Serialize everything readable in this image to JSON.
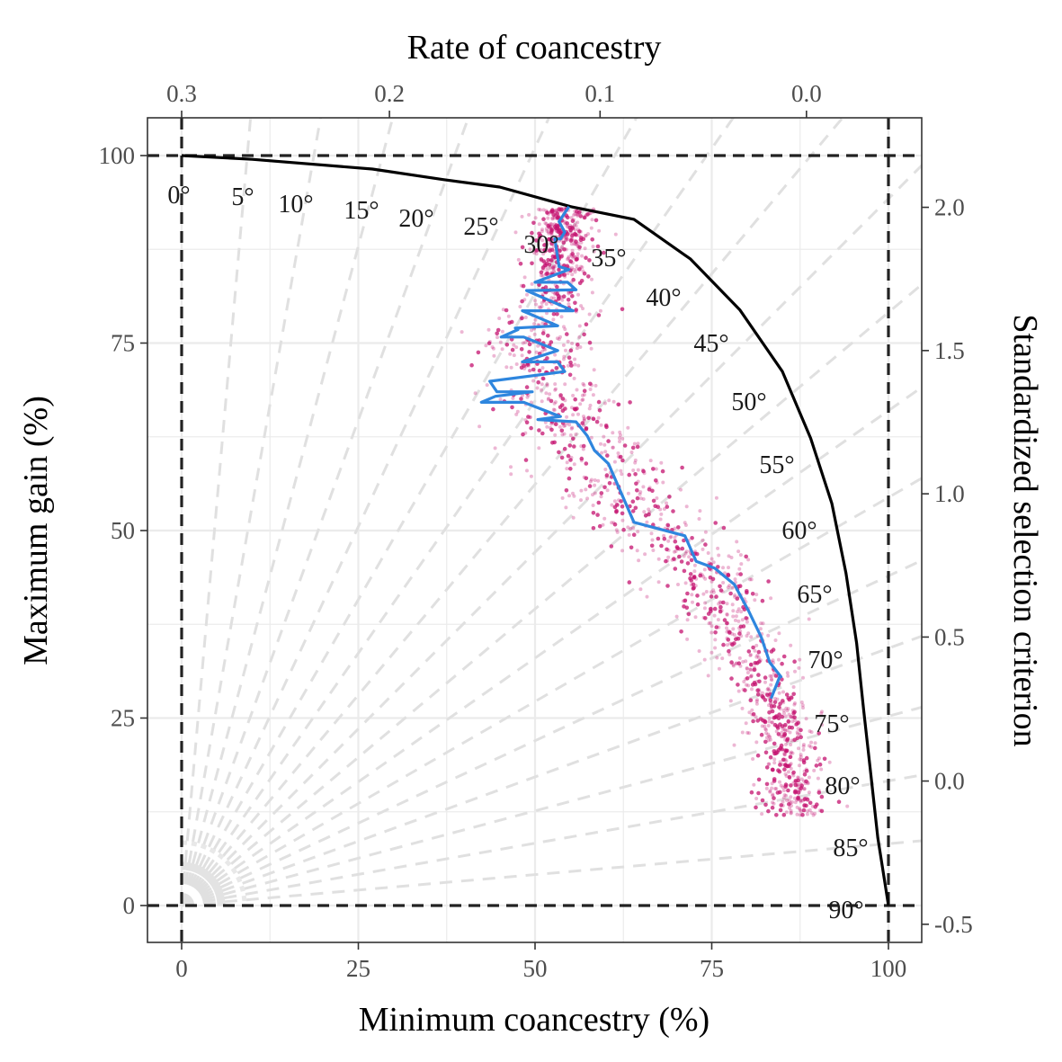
{
  "chart_data": {
    "type": "scatter",
    "title": "",
    "xlabel": "Minimum coancestry (%)",
    "ylabel": "Maximum gain (%)",
    "x2label": "Rate of coancestry",
    "y2label": "Standardized selection criterion",
    "xlim": [
      -5,
      105
    ],
    "ylim": [
      -5,
      105
    ],
    "x_ticks": [
      0,
      25,
      50,
      75,
      100
    ],
    "y_ticks": [
      0,
      25,
      50,
      75,
      100
    ],
    "x2_ticks": [
      {
        "label": "0.3",
        "at_x": 0
      },
      {
        "label": "0.2",
        "at_x": 29.4
      },
      {
        "label": "0.1",
        "at_x": 59.2
      },
      {
        "label": "0.0",
        "at_x": 88.4
      }
    ],
    "y2_ticks": [
      {
        "label": "2.0",
        "at_y": 93.1
      },
      {
        "label": "1.5",
        "at_y": 74.0
      },
      {
        "label": "1.0",
        "at_y": 54.9
      },
      {
        "label": "0.5",
        "at_y": 35.8
      },
      {
        "label": "0.0",
        "at_y": 16.6
      },
      {
        "label": "-0.5",
        "at_y": -2.5
      }
    ],
    "reference_lines": {
      "h": [
        0,
        100
      ],
      "v": [
        0,
        100
      ],
      "style": "dashed",
      "color": "#222222"
    },
    "grid": true,
    "angle_rays": {
      "angles": [
        0,
        5,
        10,
        15,
        20,
        25,
        30,
        35,
        40,
        45,
        50,
        55,
        60,
        65,
        70,
        75,
        80,
        85,
        90
      ],
      "labels": [
        "0°",
        "5°",
        "10°",
        "15°",
        "20°",
        "25°",
        "30°",
        "35°",
        "40°",
        "45°",
        "50°",
        "55°",
        "60°",
        "65°",
        "70°",
        "75°",
        "80°",
        "85°",
        "90°"
      ],
      "color": "#e0e0e0"
    },
    "series": [
      {
        "kind": "frontier",
        "color": "#000000",
        "x": [
          0,
          10,
          27,
          37,
          45,
          55,
          64,
          72,
          79,
          85,
          89,
          92,
          94,
          95.5,
          96.5,
          97.5,
          98.5,
          99.5,
          100
        ],
        "y": [
          100,
          99.5,
          98.2,
          96.8,
          95.8,
          93.2,
          91.5,
          86.2,
          79.4,
          71.2,
          62.3,
          53.6,
          44.3,
          35,
          26,
          17.5,
          9,
          3,
          0
        ]
      },
      {
        "kind": "mean-trajectory",
        "color": "#2e86de",
        "x": [
          54.8,
          53.4,
          54.2,
          53.6,
          52.8,
          53.4,
          54.8,
          50,
          54.6,
          55.8,
          48.8,
          55.4,
          48.2,
          53.2,
          47.2,
          47.6,
          45.2,
          48.4,
          53.2,
          48.2,
          53.2,
          54.2,
          43.6,
          44.6,
          49.6,
          44.4,
          42.4,
          48.4,
          53.6,
          50.4,
          55.8,
          57.4,
          58.4,
          60.4,
          64,
          71.2,
          72.8,
          75.4,
          78.2,
          80.2,
          82,
          83.2,
          84.8,
          84.6,
          83.4
        ],
        "y": [
          93.2,
          91.2,
          89.8,
          88.9,
          88.9,
          85.2,
          84.8,
          83.1,
          83.1,
          82.1,
          82,
          79.3,
          79.3,
          77.3,
          77,
          76.8,
          75.8,
          75.8,
          74,
          72.5,
          72.5,
          71.2,
          69.9,
          68.5,
          68.5,
          67.9,
          67.1,
          67.1,
          65.2,
          64.8,
          64.5,
          62.6,
          60.7,
          58.9,
          51.1,
          49.3,
          45.9,
          45,
          42.8,
          39.3,
          35.8,
          32.4,
          30.5,
          30.5,
          27.6
        ]
      },
      {
        "kind": "replicates",
        "color": "#c4116f",
        "opacity": 0.3,
        "n": 1700
      }
    ]
  }
}
